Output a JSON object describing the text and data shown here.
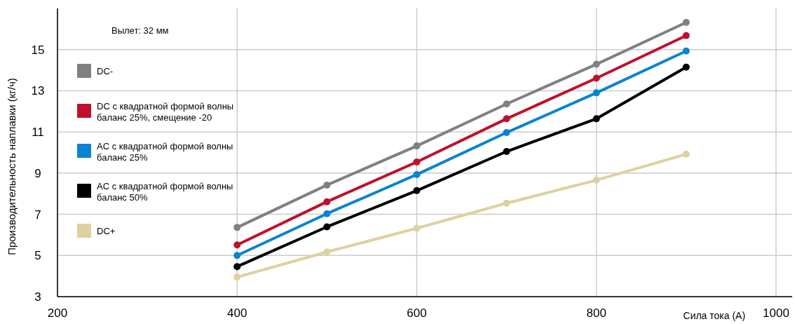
{
  "chart_data": {
    "type": "line",
    "xlabel": "Сила тока (A)",
    "ylabel": "Производительность наплавки (кг/ч)",
    "legend_title": "Вылет: 32 мм",
    "x": [
      400,
      500,
      600,
      700,
      800,
      900
    ],
    "series": [
      {
        "name": "DC-",
        "color": "#808080",
        "values": [
          6.36,
          8.42,
          10.32,
          12.36,
          14.29,
          16.32
        ]
      },
      {
        "name": "DC с квадратной формой волны\nбаланс 25%, смещение -20",
        "color": "#c0102c",
        "values": [
          5.51,
          7.61,
          9.54,
          11.64,
          13.61,
          15.68
        ]
      },
      {
        "name": "AC с квадратной формой волны\nбаланс 25%",
        "color": "#0a84d0",
        "values": [
          5.0,
          7.03,
          8.93,
          10.97,
          12.9,
          14.93
        ]
      },
      {
        "name": "AC с квадратной формой волны\nбаланс 50%",
        "color": "#000000",
        "values": [
          4.46,
          6.39,
          8.15,
          10.05,
          11.64,
          14.15
        ]
      },
      {
        "name": "DC+",
        "color": "#ded19f",
        "values": [
          3.95,
          5.17,
          6.32,
          7.54,
          8.66,
          9.92
        ]
      }
    ],
    "xlim": [
      200,
      1018
    ],
    "xticks": [
      200,
      400,
      600,
      800,
      1000
    ],
    "ylim": [
      3,
      17
    ],
    "yticks": [
      3,
      5,
      7,
      9,
      11,
      13,
      15
    ],
    "grid": true,
    "legend": "top left",
    "marker": "circle",
    "line_style": "solid"
  }
}
